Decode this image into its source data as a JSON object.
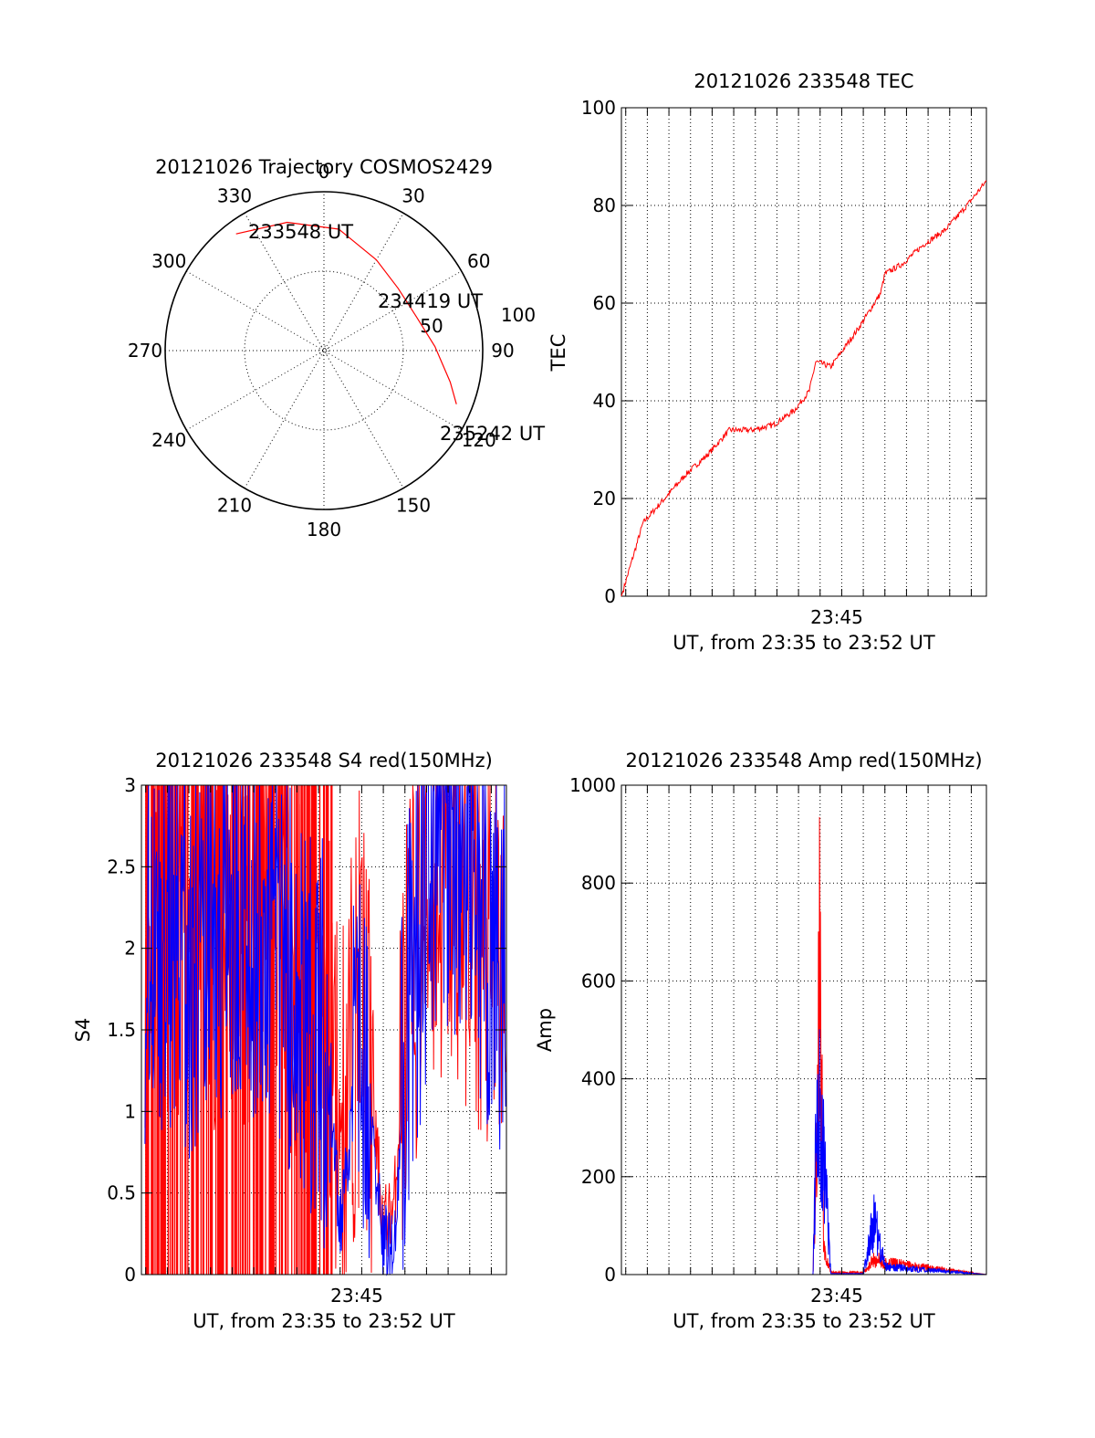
{
  "colors": {
    "red": "#ff0000",
    "blue": "#0000ff",
    "axis": "#000000",
    "background": "#ffffff"
  },
  "chart_data": [
    {
      "type": "polar",
      "title": "20121026 Trajectory COSMOS2429",
      "azimuth_labels": [
        "0",
        "30",
        "60",
        "90",
        "120",
        "150",
        "180",
        "210",
        "240",
        "270",
        "300",
        "330"
      ],
      "radial_labels": [
        "50",
        "100"
      ],
      "trajectory": {
        "color": "red",
        "points": [
          [
            323,
            92
          ],
          [
            344,
            84
          ],
          [
            7,
            77
          ],
          [
            30,
            66
          ],
          [
            50,
            61
          ],
          [
            70,
            62
          ],
          [
            88,
            70
          ],
          [
            104,
            82
          ],
          [
            112,
            90
          ]
        ]
      },
      "annotations": [
        {
          "text": "233548 UT",
          "azimuth": 323,
          "zenith": 92
        },
        {
          "text": "234419 UT",
          "azimuth": 52,
          "zenith": 58
        },
        {
          "text": "235242 UT",
          "azimuth": 112,
          "zenith": 90
        }
      ]
    },
    {
      "type": "line",
      "title": "20121026 233548 TEC",
      "ylabel": "TEC",
      "xlabel": "UT, from 23:35 to 23:52 UT",
      "x_tick_labels": [
        "23:45"
      ],
      "y_tick_labels": [
        "0",
        "20",
        "40",
        "60",
        "80",
        "100"
      ],
      "xlim": [
        "23:35:48",
        "23:52:42"
      ],
      "ylim": [
        0,
        100
      ],
      "grid": true,
      "series": [
        {
          "color": "red",
          "x": [
            "23:35:48",
            "23:36:48",
            "23:37:48",
            "23:38:48",
            "23:39:48",
            "23:40:48",
            "23:41:48",
            "23:42:48",
            "23:43:48",
            "23:44:30",
            "23:44:48",
            "23:45:30",
            "23:46:48",
            "23:47:48",
            "23:48:00",
            "23:48:48",
            "23:49:48",
            "23:50:48",
            "23:51:48",
            "23:52:42"
          ],
          "y": [
            0,
            15,
            20,
            25,
            29,
            34,
            34,
            35,
            38,
            42,
            48,
            47,
            55,
            62,
            66,
            68,
            72,
            75,
            80,
            85
          ]
        }
      ]
    },
    {
      "type": "line",
      "title": "20121026 233548 S4 red(150MHz)",
      "ylabel": "S4",
      "xlabel": "UT, from 23:35 to 23:52 UT",
      "x_tick_labels": [
        "23:45"
      ],
      "y_tick_labels": [
        "0",
        "0.5",
        "1",
        "1.5",
        "2",
        "2.5",
        "3"
      ],
      "xlim": [
        "23:35:48",
        "23:52:42"
      ],
      "ylim": [
        0,
        3
      ],
      "grid": true,
      "series": [
        {
          "color": "red",
          "x": [
            "23:36:00",
            "23:38:00",
            "23:40:00",
            "23:42:00",
            "23:43:00",
            "23:44:00",
            "23:44:30",
            "23:45:00",
            "23:46:00",
            "23:47:00",
            "23:47:30",
            "23:48:00",
            "23:49:00",
            "23:50:00",
            "23:51:00",
            "23:52:00"
          ],
          "y": [
            2.2,
            2.3,
            2.1,
            2.4,
            1.9,
            1.6,
            1.5,
            0.9,
            1.8,
            0.3,
            0.4,
            1.6,
            2.3,
            2.4,
            2.3,
            1.8
          ]
        },
        {
          "color": "blue",
          "x": [
            "23:36:00",
            "23:38:00",
            "23:40:00",
            "23:42:00",
            "23:43:00",
            "23:44:00",
            "23:44:30",
            "23:45:00",
            "23:46:00",
            "23:47:00",
            "23:47:30",
            "23:48:00",
            "23:49:00",
            "23:50:00",
            "23:51:00",
            "23:52:00"
          ],
          "y": [
            2.1,
            2.0,
            2.3,
            2.2,
            1.7,
            1.5,
            1.2,
            0.3,
            1.5,
            0.2,
            0.2,
            1.4,
            2.5,
            2.6,
            2.7,
            2.0
          ]
        }
      ]
    },
    {
      "type": "line",
      "title": "20121026 233548 Amp red(150MHz)",
      "ylabel": "Amp",
      "xlabel": "UT, from 23:35 to 23:52 UT",
      "x_tick_labels": [
        "23:45"
      ],
      "y_tick_labels": [
        "0",
        "200",
        "400",
        "600",
        "800",
        "1000"
      ],
      "xlim": [
        "23:35:48",
        "23:52:42"
      ],
      "ylim": [
        0,
        1000
      ],
      "grid": true,
      "series": [
        {
          "color": "red",
          "x": [
            "23:35:48",
            "23:44:40",
            "23:44:50",
            "23:45:00",
            "23:45:10",
            "23:45:30",
            "23:47:00",
            "23:47:30",
            "23:48:00",
            "23:52:42"
          ],
          "y": [
            0,
            0,
            300,
            870,
            60,
            5,
            5,
            40,
            30,
            0
          ]
        },
        {
          "color": "blue",
          "x": [
            "23:35:48",
            "23:44:40",
            "23:44:50",
            "23:45:00",
            "23:45:10",
            "23:45:30",
            "23:47:00",
            "23:47:30",
            "23:48:00",
            "23:52:42"
          ],
          "y": [
            0,
            0,
            380,
            420,
            300,
            2,
            2,
            140,
            20,
            0
          ]
        }
      ]
    }
  ]
}
